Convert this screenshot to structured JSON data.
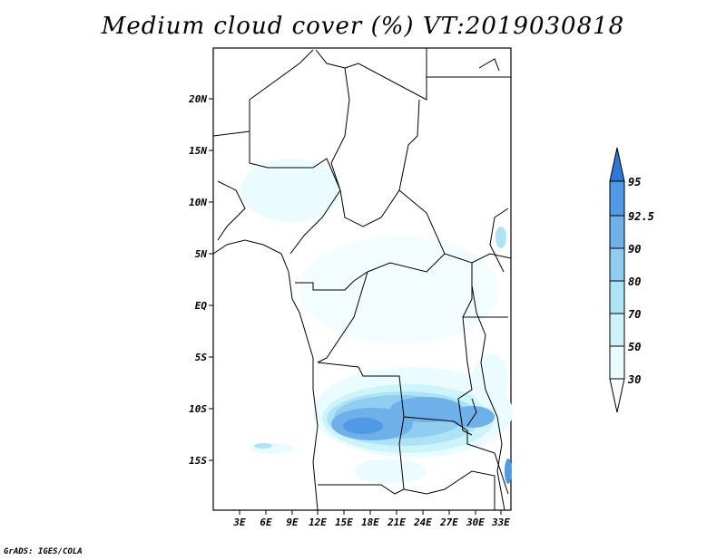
{
  "title": "Medium cloud cover (%) VT:2019030818",
  "footer": "GrADS: IGES/COLA",
  "map": {
    "lat_range": [
      -19,
      24
    ],
    "lon_range": [
      0,
      34
    ],
    "y_ticks": [
      "20N",
      "15N",
      "10N",
      "5N",
      "EQ",
      "5S",
      "10S",
      "15S"
    ],
    "x_ticks": [
      "3E",
      "6E",
      "9E",
      "12E",
      "15E",
      "18E",
      "21E",
      "24E",
      "27E",
      "30E",
      "33E"
    ]
  },
  "colorbar": {
    "levels": [
      "30",
      "50",
      "70",
      "80",
      "90",
      "92.5",
      "95"
    ],
    "colors": [
      "#eafcff",
      "#cdf3fb",
      "#aee3f6",
      "#8fcdf1",
      "#6fb0eb",
      "#5099e4",
      "#2f77d6"
    ]
  }
}
